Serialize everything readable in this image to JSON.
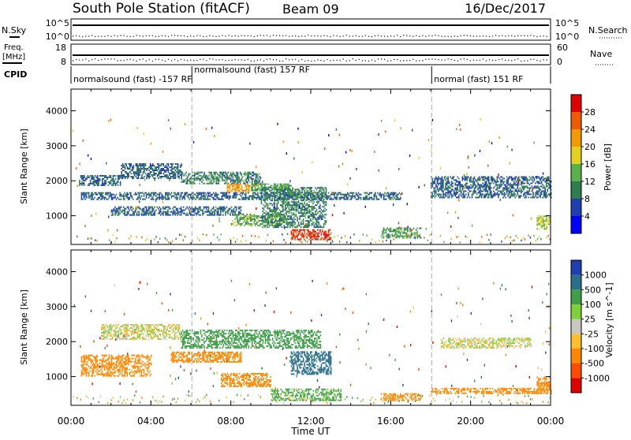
{
  "header": {
    "station": "South Pole Station (fitACF)",
    "beam": "Beam 09",
    "date": "16/Dec/2017"
  },
  "strip": {
    "nsky_label": "N.Sky",
    "nsky_ticks": [
      "10^5",
      "10^0"
    ],
    "nsearch_label": "N.Search",
    "nsearch_ticks": [
      "10^5",
      "10^0"
    ],
    "freq_label_1": "Freq.",
    "freq_label_2": "[MHz]",
    "freq_ticks": [
      "18",
      "8"
    ],
    "nave_label": "Nave",
    "nave_ticks": [
      "60",
      "0"
    ],
    "cpid_label": "CPID",
    "cpid_segments": [
      {
        "text": "normalsound (fast) -157 RF",
        "start_h": 0,
        "end_h": 6.05
      },
      {
        "text": "normalsound (fast) 157 RF",
        "start_h": 6.05,
        "end_h": 18.05
      },
      {
        "text": "normal (fast) 151 RF",
        "start_h": 18.05,
        "end_h": 24
      }
    ]
  },
  "colors": {
    "power": [
      "#0000ff",
      "#1f3fb0",
      "#2e7d4f",
      "#5ab04a",
      "#e5cf20",
      "#f39a00",
      "#f05a00",
      "#e00000"
    ],
    "velocity": [
      "#e00000",
      "#ff4a00",
      "#ff8800",
      "#ffbe2e",
      "#c8c8c0",
      "#7fd13a",
      "#3f9f49",
      "#2a6f8a",
      "#1f3fb0"
    ]
  },
  "chart_data": [
    {
      "type": "heatmap",
      "panel": "power",
      "ylabel": "Slant Range [km]",
      "xlabel": "Time UT",
      "x_ticks": [
        "00:00",
        "04:00",
        "08:00",
        "12:00",
        "16:00",
        "20:00",
        "00:00"
      ],
      "y_ticks": [
        1000,
        2000,
        3000,
        4000
      ],
      "xlim_hours": [
        0,
        24
      ],
      "ylim_km": [
        180,
        4620
      ],
      "colorbar_label": "Power [dB]",
      "colorbar_ticks": [
        "4",
        "8",
        "12",
        "16",
        "20",
        "24",
        "28"
      ],
      "colorbar_range": [
        0,
        32
      ],
      "regions": [
        {
          "t0": 0.4,
          "t1": 2.5,
          "r0": 1850,
          "r1": 2150,
          "v": 8
        },
        {
          "t0": 2.5,
          "t1": 5.5,
          "r0": 2050,
          "r1": 2500,
          "v": 8
        },
        {
          "t0": 5.5,
          "t1": 9.5,
          "r0": 1900,
          "r1": 2250,
          "v": 10
        },
        {
          "t0": 7.8,
          "t1": 9.0,
          "r0": 1650,
          "r1": 1900,
          "v": 22
        },
        {
          "t0": 9.0,
          "t1": 11.0,
          "r0": 1700,
          "r1": 1900,
          "v": 13
        },
        {
          "t0": 0.5,
          "t1": 16.5,
          "r0": 1450,
          "r1": 1650,
          "v": 8
        },
        {
          "t0": 2.0,
          "t1": 8.5,
          "r0": 1000,
          "r1": 1250,
          "v": 8
        },
        {
          "t0": 8.0,
          "t1": 10.5,
          "r0": 700,
          "r1": 1050,
          "v": 14
        },
        {
          "t0": 9.5,
          "t1": 12.8,
          "r0": 650,
          "r1": 1800,
          "v": 10
        },
        {
          "t0": 11.0,
          "t1": 13.0,
          "r0": 300,
          "r1": 600,
          "v": 28
        },
        {
          "t0": 15.5,
          "t1": 17.5,
          "r0": 350,
          "r1": 650,
          "v": 12
        },
        {
          "t0": 18.0,
          "t1": 24.0,
          "r0": 1500,
          "r1": 2100,
          "v": 8
        },
        {
          "t0": 23.3,
          "t1": 24.0,
          "r0": 600,
          "r1": 1000,
          "v": 16
        }
      ]
    },
    {
      "type": "heatmap",
      "panel": "velocity",
      "ylabel": "Slant Range [km]",
      "xlabel": "Time UT",
      "x_ticks": [
        "00:00",
        "04:00",
        "08:00",
        "12:00",
        "16:00",
        "20:00",
        "00:00"
      ],
      "y_ticks": [
        1000,
        2000,
        3000,
        4000
      ],
      "xlim_hours": [
        0,
        24
      ],
      "ylim_km": [
        180,
        4620
      ],
      "colorbar_label": "Velocity [m s^-1]",
      "colorbar_ticks": [
        "-1000",
        "-500",
        "-100",
        "-25",
        "25",
        "100",
        "500",
        "1000"
      ],
      "colorbar_range": [
        -1500,
        1500
      ],
      "regions": [
        {
          "t0": 1.5,
          "t1": 5.5,
          "r0": 2050,
          "r1": 2500,
          "v": 0
        },
        {
          "t0": 5.5,
          "t1": 12.5,
          "r0": 1800,
          "r1": 2300,
          "v": 200
        },
        {
          "t0": 0.5,
          "t1": 4.0,
          "r0": 1000,
          "r1": 1600,
          "v": -300
        },
        {
          "t0": 5.0,
          "t1": 8.5,
          "r0": 1400,
          "r1": 1700,
          "v": -200
        },
        {
          "t0": 7.5,
          "t1": 10.0,
          "r0": 700,
          "r1": 1100,
          "v": -300
        },
        {
          "t0": 10.0,
          "t1": 13.5,
          "r0": 300,
          "r1": 650,
          "v": 150
        },
        {
          "t0": 11.0,
          "t1": 13.0,
          "r0": 1050,
          "r1": 1700,
          "v": 600
        },
        {
          "t0": 15.5,
          "t1": 17.5,
          "r0": 300,
          "r1": 500,
          "v": -300
        },
        {
          "t0": 18.0,
          "t1": 24.0,
          "r0": 500,
          "r1": 650,
          "v": -300
        },
        {
          "t0": 18.5,
          "t1": 23.0,
          "r0": 1800,
          "r1": 2100,
          "v": 0
        },
        {
          "t0": 23.3,
          "t1": 24.0,
          "r0": 600,
          "r1": 1000,
          "v": -400
        }
      ]
    }
  ]
}
